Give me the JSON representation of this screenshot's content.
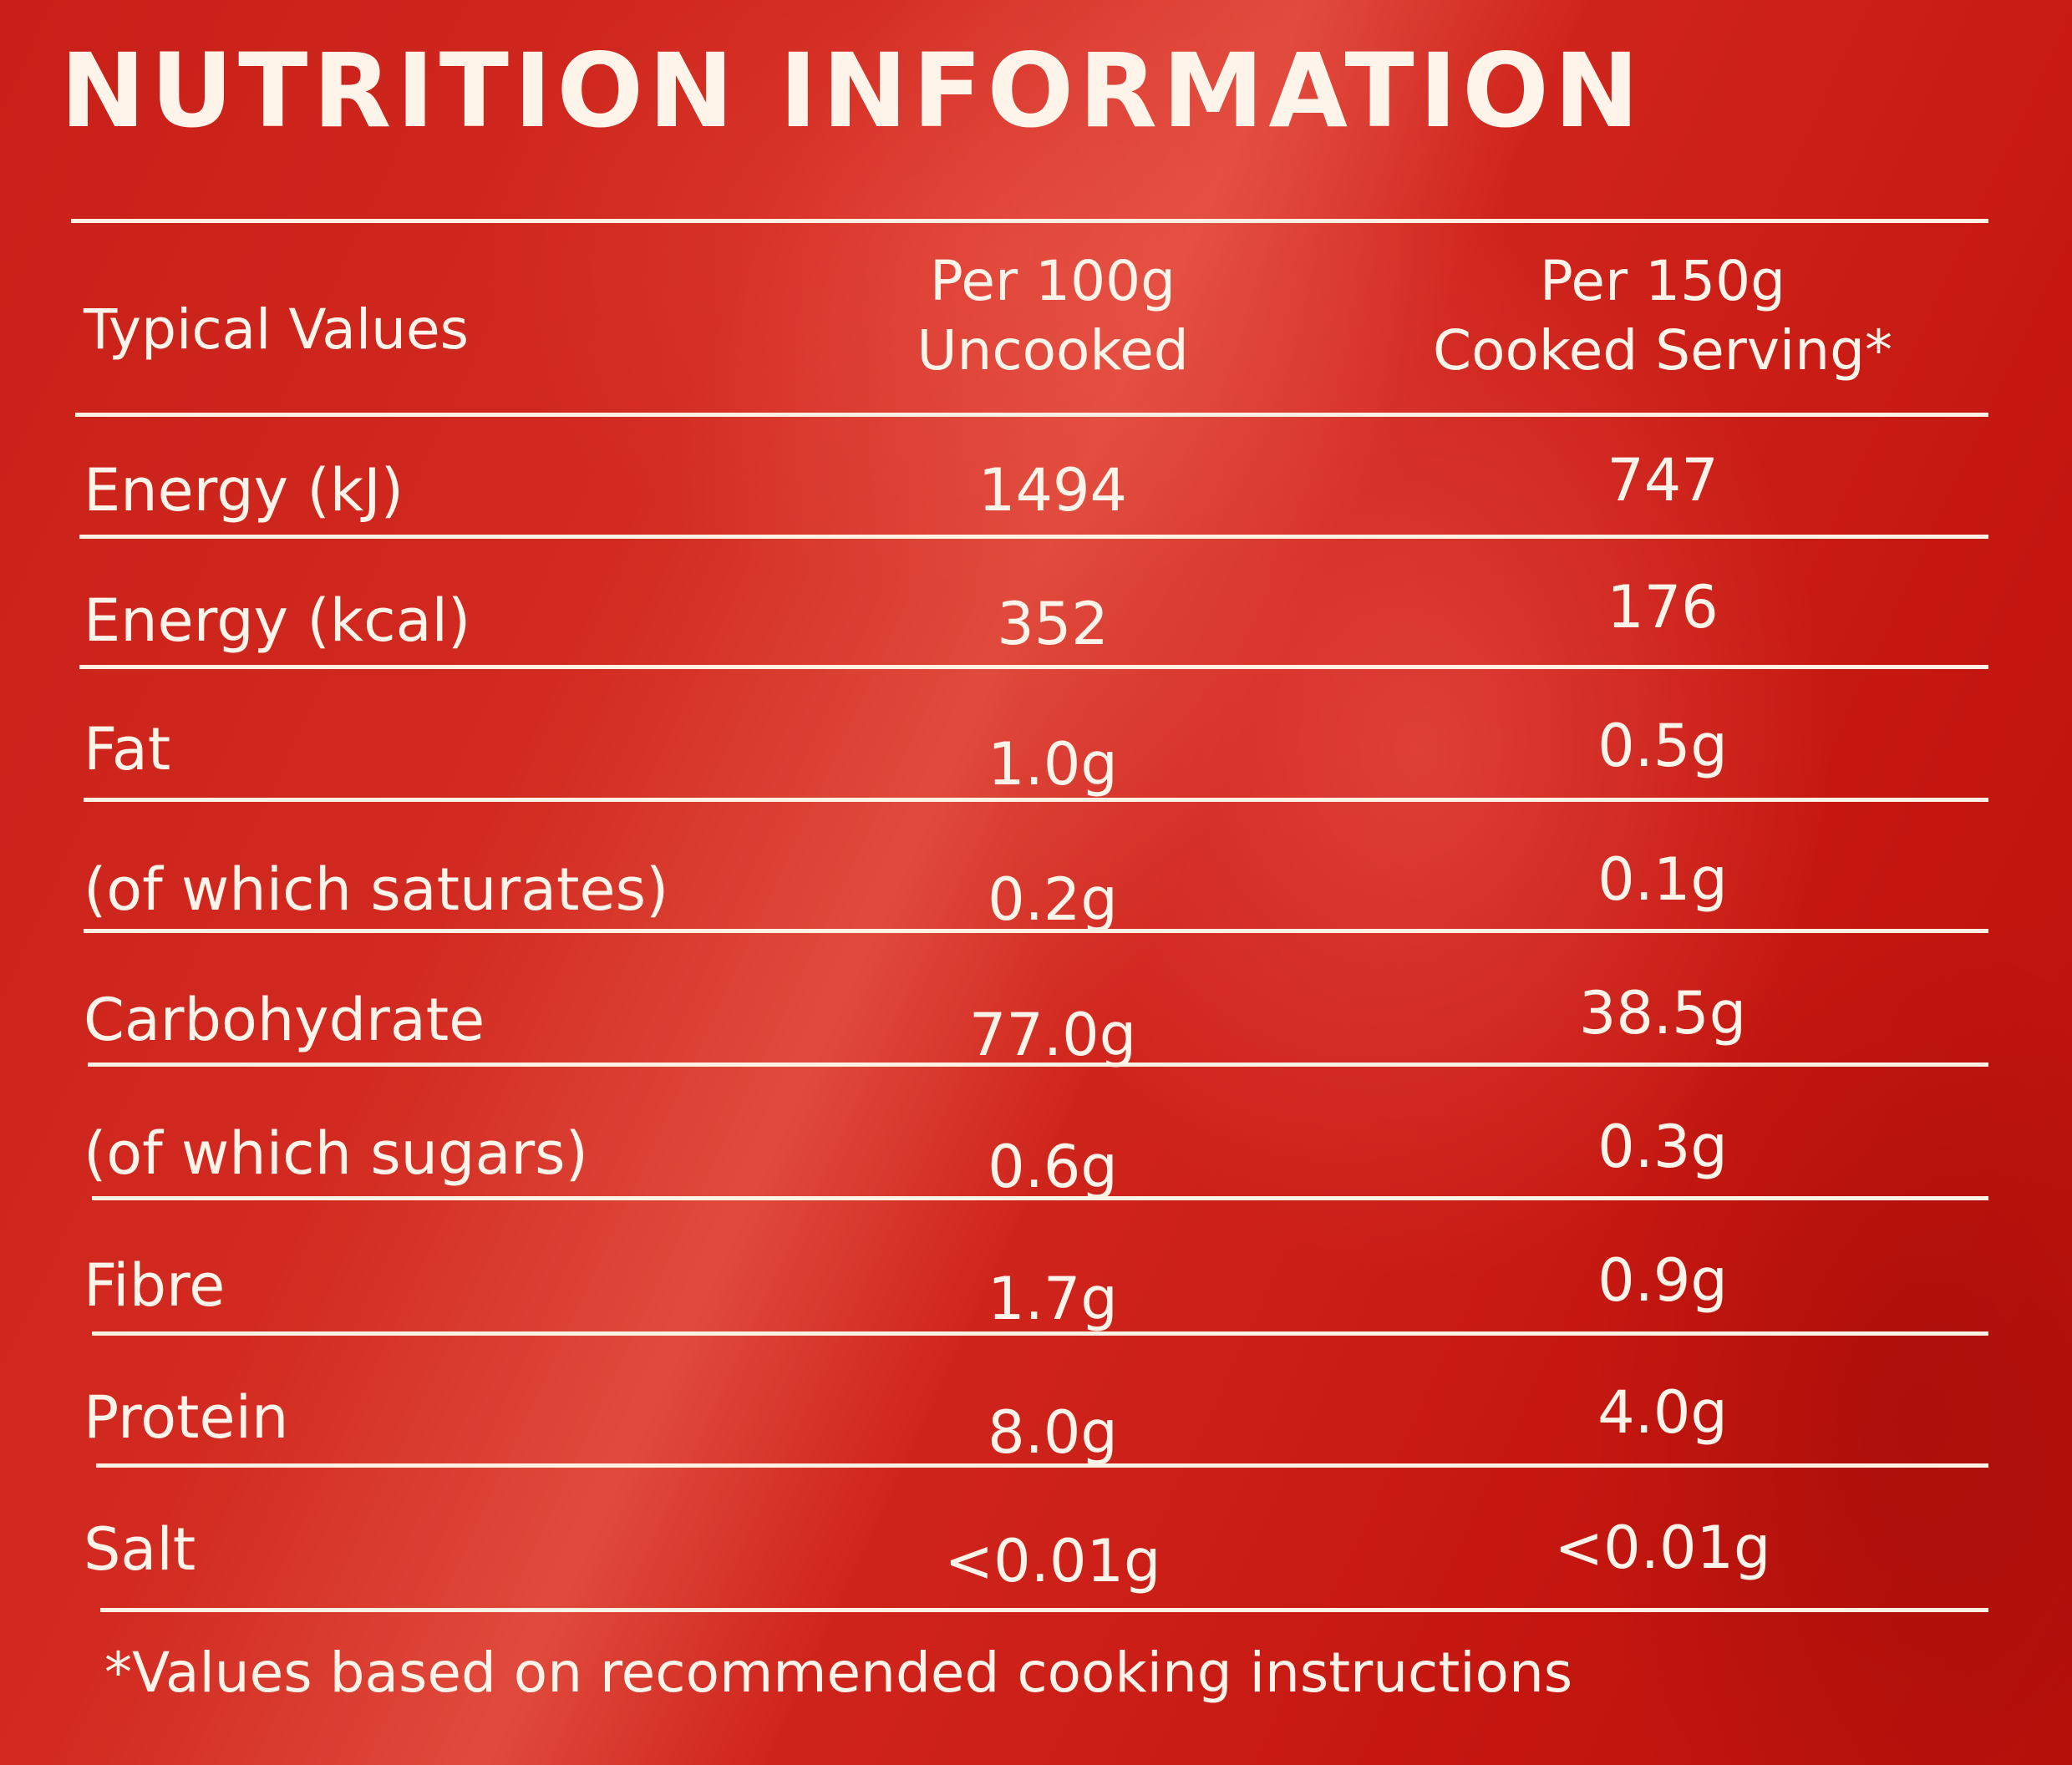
{
  "title": "NUTRITION INFORMATION",
  "header": {
    "label": "Typical Values",
    "col1_line1": "Per 100g",
    "col1_line2": "Uncooked",
    "col2_line1": "Per 150g",
    "col2_line2": "Cooked Serving*"
  },
  "rows": [
    {
      "label": "Energy (kJ)",
      "per100": "1494",
      "per150": "747"
    },
    {
      "label": "Energy (kcal)",
      "per100": "352",
      "per150": "176"
    },
    {
      "label": "Fat",
      "per100": "1.0g",
      "per150": "0.5g"
    },
    {
      "label": "(of which saturates)",
      "per100": "0.2g",
      "per150": "0.1g"
    },
    {
      "label": "Carbohydrate",
      "per100": "77.0g",
      "per150": "38.5g"
    },
    {
      "label": "(of which sugars)",
      "per100": "0.6g",
      "per150": "0.3g"
    },
    {
      "label": "Fibre",
      "per100": "1.7g",
      "per150": "0.9g"
    },
    {
      "label": "Protein",
      "per100": "8.0g",
      "per150": "4.0g"
    },
    {
      "label": "Salt",
      "per100": "<0.01g",
      "per150": "<0.01g"
    }
  ],
  "footnote": "*Values based on recommended cooking instructions",
  "colors": {
    "background": "#c81f18",
    "text": "#fff4ea"
  }
}
